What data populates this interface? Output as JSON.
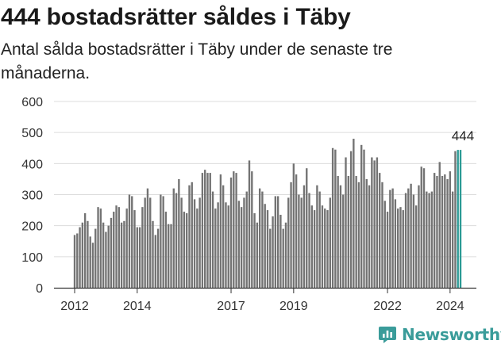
{
  "header": {
    "title": "444 bostadsrätter såldes i Täby",
    "subtitle": "Antal sålda bostadsrätter i Täby under de senaste tre månaderna."
  },
  "chart_data": {
    "type": "bar",
    "title": "444 bostadsrätter såldes i Täby",
    "subtitle": "Antal sålda bostadsrätter i Täby under de senaste tre månaderna.",
    "xlabel": "",
    "ylabel": "",
    "ylim": [
      0,
      600
    ],
    "yticks": [
      0,
      100,
      200,
      300,
      400,
      500,
      600
    ],
    "xticks": [
      "2012",
      "2014",
      "2017",
      "2019",
      "2022",
      "2024"
    ],
    "grid": true,
    "highlight_label": "444",
    "colors": {
      "bar": "#737373",
      "highlight": "#2b9a94",
      "grid": "#dcdcdc",
      "brand": "#3a9c9a"
    },
    "start_period": "2012-01",
    "period_step": "month",
    "values": [
      170,
      175,
      195,
      210,
      240,
      215,
      165,
      145,
      190,
      260,
      255,
      210,
      180,
      200,
      225,
      245,
      265,
      260,
      210,
      215,
      255,
      300,
      295,
      250,
      195,
      195,
      260,
      290,
      320,
      290,
      215,
      170,
      190,
      300,
      295,
      245,
      205,
      205,
      320,
      305,
      350,
      290,
      245,
      240,
      330,
      340,
      285,
      255,
      290,
      370,
      380,
      370,
      370,
      310,
      255,
      275,
      365,
      330,
      275,
      265,
      355,
      375,
      370,
      280,
      260,
      290,
      310,
      410,
      375,
      240,
      210,
      320,
      310,
      270,
      250,
      190,
      230,
      295,
      295,
      235,
      190,
      210,
      290,
      340,
      400,
      365,
      300,
      290,
      330,
      385,
      305,
      265,
      250,
      330,
      310,
      265,
      255,
      250,
      290,
      450,
      445,
      360,
      330,
      300,
      420,
      360,
      440,
      480,
      360,
      340,
      460,
      445,
      350,
      330,
      420,
      410,
      420,
      370,
      340,
      280,
      245,
      315,
      320,
      285,
      255,
      260,
      250,
      305,
      320,
      335,
      300,
      265,
      330,
      390,
      385,
      310,
      305,
      310,
      370,
      360,
      405,
      360,
      365,
      350,
      375,
      310,
      440,
      444,
      444
    ]
  },
  "branding": {
    "name": "Newsworthy",
    "icon": "chart-icon"
  }
}
